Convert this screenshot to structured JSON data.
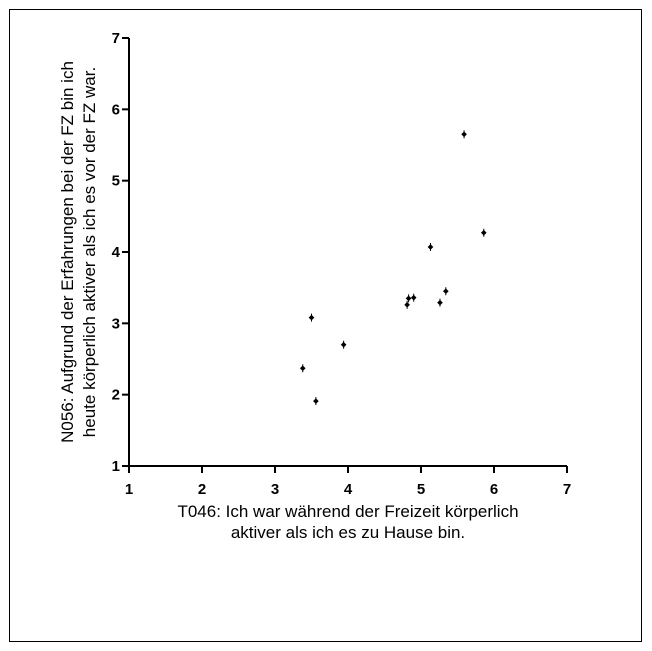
{
  "chart_data": {
    "type": "scatter",
    "title": "",
    "xlabel": [
      "T046: Ich war während der Freizeit körperlich",
      "aktiver als ich es zu Hause bin."
    ],
    "ylabel": [
      "N056: Aufgrund der Erfahrungen bei der FZ bin ich",
      "heute körperlich aktiver als ich es vor der FZ war."
    ],
    "xlim": [
      1,
      7
    ],
    "ylim": [
      1,
      7
    ],
    "xticks": [
      1,
      2,
      3,
      4,
      5,
      6,
      7
    ],
    "yticks": [
      1,
      2,
      3,
      4,
      5,
      6,
      7
    ],
    "grid": false,
    "marker_color": "#000000",
    "points": [
      {
        "x": 3.38,
        "y": 2.37
      },
      {
        "x": 3.5,
        "y": 3.08
      },
      {
        "x": 3.56,
        "y": 1.91
      },
      {
        "x": 3.94,
        "y": 2.7
      },
      {
        "x": 4.81,
        "y": 3.26
      },
      {
        "x": 4.83,
        "y": 3.35
      },
      {
        "x": 4.9,
        "y": 3.36
      },
      {
        "x": 5.13,
        "y": 4.07
      },
      {
        "x": 5.26,
        "y": 3.29
      },
      {
        "x": 5.34,
        "y": 3.45
      },
      {
        "x": 5.59,
        "y": 5.65
      },
      {
        "x": 5.86,
        "y": 4.27
      }
    ]
  }
}
